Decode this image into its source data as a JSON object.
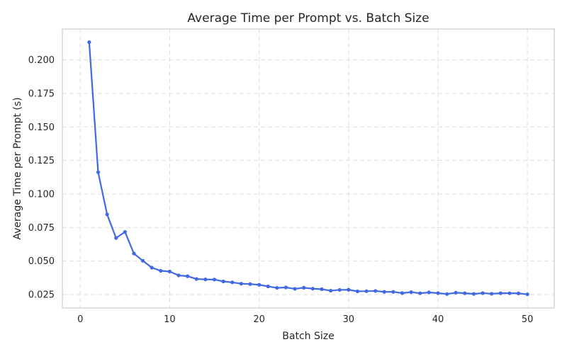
{
  "chart_data": {
    "type": "line",
    "title": "Average Time per Prompt vs. Batch Size",
    "xlabel": "Batch Size",
    "ylabel": "Average Time per Prompt (s)",
    "xlim": [
      -2.0,
      53.0
    ],
    "ylim": [
      0.015,
      0.223
    ],
    "xticks": [
      0,
      10,
      20,
      30,
      40,
      50
    ],
    "yticks": [
      0.025,
      0.05,
      0.075,
      0.1,
      0.125,
      0.15,
      0.175,
      0.2
    ],
    "xtick_labels": [
      "0",
      "10",
      "20",
      "30",
      "40",
      "50"
    ],
    "ytick_labels": [
      "0.025",
      "0.050",
      "0.075",
      "0.100",
      "0.125",
      "0.150",
      "0.175",
      "0.200"
    ],
    "grid": true,
    "line_color": "#4169e1",
    "series": [
      {
        "x": [
          1,
          2,
          3,
          4,
          5,
          6,
          7,
          8,
          9,
          10,
          11,
          12,
          13,
          14,
          15,
          16,
          17,
          18,
          19,
          20,
          21,
          22,
          23,
          24,
          25,
          26,
          27,
          28,
          29,
          30,
          31,
          32,
          33,
          34,
          35,
          36,
          37,
          38,
          39,
          40,
          41,
          42,
          43,
          44,
          45,
          46,
          47,
          48,
          49,
          50
        ],
        "values": [
          0.2132,
          0.1162,
          0.0848,
          0.0672,
          0.0717,
          0.0556,
          0.0502,
          0.0451,
          0.0427,
          0.0422,
          0.0393,
          0.0387,
          0.0366,
          0.0363,
          0.0362,
          0.0348,
          0.0341,
          0.0331,
          0.0328,
          0.0323,
          0.0311,
          0.03,
          0.0303,
          0.0293,
          0.0301,
          0.0294,
          0.029,
          0.0279,
          0.0285,
          0.0286,
          0.0274,
          0.0275,
          0.0277,
          0.027,
          0.027,
          0.0261,
          0.0268,
          0.026,
          0.0266,
          0.0261,
          0.0254,
          0.0264,
          0.026,
          0.0255,
          0.0261,
          0.0256,
          0.026,
          0.026,
          0.0259,
          0.0252
        ]
      }
    ]
  }
}
